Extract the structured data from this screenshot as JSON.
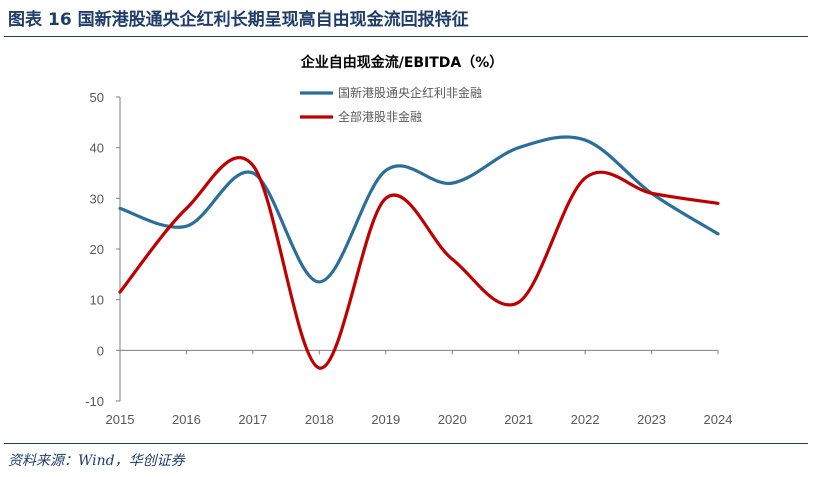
{
  "figure": {
    "label": "图表",
    "number": "16",
    "caption": "国新港股通央企红利长期呈现高自由现金流回报特征",
    "source": "资料来源：Wind，华创证券"
  },
  "chart_data": {
    "type": "line",
    "title": "企业自由现金流/EBITDA（%）",
    "categories": [
      "2015",
      "2016",
      "2017",
      "2018",
      "2019",
      "2020",
      "2021",
      "2022",
      "2023",
      "2024"
    ],
    "series": [
      {
        "name": "国新港股通央企红利非金融",
        "color": "#2a6f9b",
        "values": [
          28,
          24.5,
          35,
          13.5,
          35.5,
          33,
          40,
          41.5,
          31,
          23
        ]
      },
      {
        "name": "全部港股非金融",
        "color": "#c00000",
        "values": [
          11.5,
          28,
          36.5,
          -3.5,
          30,
          18,
          9.5,
          34,
          31,
          29
        ]
      }
    ],
    "ylim": [
      -10,
      50
    ],
    "yticks": [
      -10,
      0,
      10,
      20,
      30,
      40,
      50
    ],
    "legend_position": "top-left"
  }
}
